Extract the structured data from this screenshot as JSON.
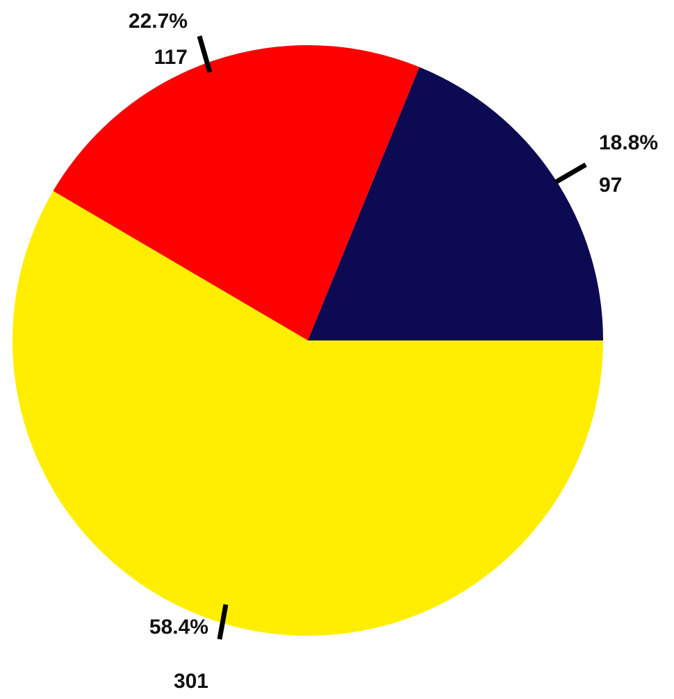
{
  "chart_data": {
    "type": "pie",
    "slices": [
      {
        "value": 97,
        "percent_label": "18.8%",
        "count_label": "97",
        "color": "#0b0a52"
      },
      {
        "value": 117,
        "percent_label": "22.7%",
        "count_label": "117",
        "color": "#ff0000"
      },
      {
        "value": 301,
        "percent_label": "58.4%",
        "count_label": "301",
        "color": "#ffee00"
      }
    ],
    "start_direction": "east",
    "rotation": "counterclockwise",
    "leader_lines": true
  }
}
